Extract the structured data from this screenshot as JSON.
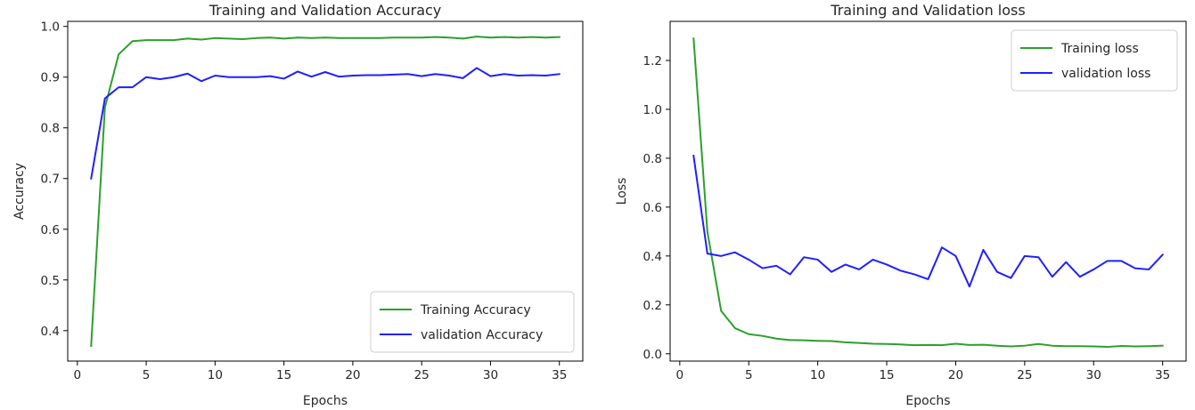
{
  "chart_data": [
    {
      "type": "line",
      "title": "Training and Validation Accuracy",
      "xlabel": "Epochs",
      "ylabel": "Accuracy",
      "xlim": [
        -0.7,
        36.7
      ],
      "ylim": [
        0.34,
        1.01
      ],
      "xticks": [
        0,
        5,
        10,
        15,
        20,
        25,
        30,
        35
      ],
      "yticks": [
        0.4,
        0.5,
        0.6,
        0.7,
        0.8,
        0.9,
        1.0
      ],
      "grid": false,
      "legend_position": "lower-right",
      "x": [
        1,
        2,
        3,
        4,
        5,
        6,
        7,
        8,
        9,
        10,
        11,
        12,
        13,
        14,
        15,
        16,
        17,
        18,
        19,
        20,
        21,
        22,
        23,
        24,
        25,
        26,
        27,
        28,
        29,
        30,
        31,
        32,
        33,
        34,
        35
      ],
      "series": [
        {
          "name": "Training Accuracy",
          "color": "#2ca02c",
          "values": [
            0.37,
            0.84,
            0.945,
            0.971,
            0.973,
            0.973,
            0.973,
            0.976,
            0.974,
            0.977,
            0.976,
            0.975,
            0.977,
            0.978,
            0.976,
            0.978,
            0.977,
            0.978,
            0.977,
            0.977,
            0.977,
            0.977,
            0.978,
            0.978,
            0.978,
            0.979,
            0.978,
            0.976,
            0.98,
            0.978,
            0.979,
            0.978,
            0.979,
            0.978,
            0.979
          ]
        },
        {
          "name": "validation Accuracy",
          "color": "#1f1fff",
          "values": [
            0.7,
            0.858,
            0.88,
            0.88,
            0.9,
            0.896,
            0.9,
            0.907,
            0.892,
            0.903,
            0.9,
            0.9,
            0.9,
            0.902,
            0.897,
            0.911,
            0.901,
            0.91,
            0.901,
            0.903,
            0.904,
            0.904,
            0.905,
            0.906,
            0.902,
            0.906,
            0.903,
            0.898,
            0.918,
            0.902,
            0.906,
            0.903,
            0.904,
            0.903,
            0.906
          ]
        }
      ]
    },
    {
      "type": "line",
      "title": "Training and Validation loss",
      "xlabel": "Epochs",
      "ylabel": "Loss",
      "xlim": [
        -0.7,
        36.7
      ],
      "ylim": [
        -0.03,
        1.36
      ],
      "xticks": [
        0,
        5,
        10,
        15,
        20,
        25,
        30,
        35
      ],
      "yticks": [
        0.0,
        0.2,
        0.4,
        0.6,
        0.8,
        1.0,
        1.2
      ],
      "grid": false,
      "legend_position": "upper-right",
      "x": [
        1,
        2,
        3,
        4,
        5,
        6,
        7,
        8,
        9,
        10,
        11,
        12,
        13,
        14,
        15,
        16,
        17,
        18,
        19,
        20,
        21,
        22,
        23,
        24,
        25,
        26,
        27,
        28,
        29,
        30,
        31,
        32,
        33,
        34,
        35
      ],
      "series": [
        {
          "name": "Training loss",
          "color": "#2ca02c",
          "values": [
            1.29,
            0.5,
            0.175,
            0.105,
            0.08,
            0.073,
            0.062,
            0.056,
            0.055,
            0.053,
            0.052,
            0.047,
            0.044,
            0.041,
            0.04,
            0.038,
            0.035,
            0.036,
            0.035,
            0.041,
            0.036,
            0.037,
            0.033,
            0.03,
            0.033,
            0.04,
            0.033,
            0.031,
            0.031,
            0.03,
            0.028,
            0.032,
            0.03,
            0.031,
            0.033
          ]
        },
        {
          "name": "validation loss",
          "color": "#1f1fff",
          "values": [
            0.81,
            0.41,
            0.4,
            0.415,
            0.385,
            0.35,
            0.36,
            0.325,
            0.395,
            0.385,
            0.335,
            0.365,
            0.345,
            0.385,
            0.365,
            0.34,
            0.325,
            0.305,
            0.435,
            0.4,
            0.275,
            0.425,
            0.335,
            0.31,
            0.4,
            0.395,
            0.315,
            0.375,
            0.315,
            0.345,
            0.38,
            0.38,
            0.35,
            0.345,
            0.405
          ]
        }
      ]
    }
  ]
}
